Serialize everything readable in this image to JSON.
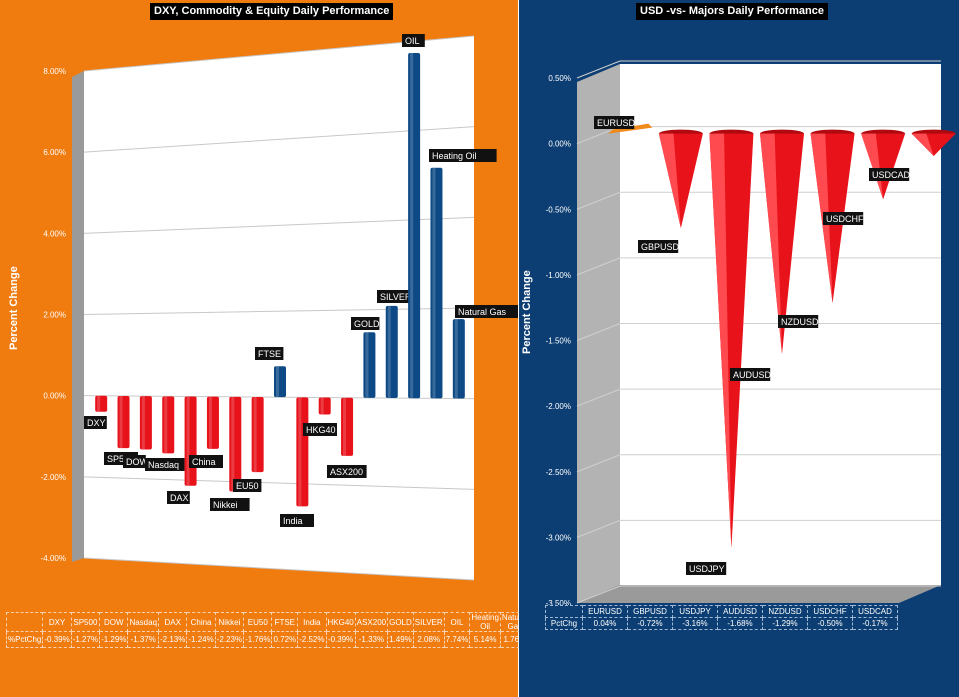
{
  "left": {
    "title": "DXY, Commodity & Equity Daily Performance",
    "ylabel": "Percent Change",
    "row_label": "%PctChg"
  },
  "right": {
    "title": "USD -vs- Majors Daily Performance",
    "ylabel": "Percent Change",
    "row_label": "PctChg"
  },
  "colors": {
    "negative": "#e8121a",
    "positive": "#0d4a85",
    "orange_bg": "#f07b0f",
    "navy_bg": "#0c3e73"
  },
  "chart_data": [
    {
      "type": "bar",
      "title": "DXY, Commodity & Equity Daily Performance",
      "ylabel": "Percent Change",
      "categories": [
        "DXY",
        "SP500",
        "DOW",
        "Nasdaq",
        "DAX",
        "China",
        "Nikkei",
        "EU50",
        "FTSE",
        "India",
        "HKG40",
        "ASX200",
        "GOLD",
        "SILVER",
        "OIL",
        "Heating Oil",
        "Natural Gas"
      ],
      "values": [
        -0.39,
        -1.27,
        -1.29,
        -1.37,
        -2.13,
        -1.24,
        -2.23,
        -1.76,
        0.72,
        -2.52,
        -0.39,
        -1.33,
        1.49,
        2.08,
        7.74,
        5.14,
        1.76
      ],
      "value_labels": [
        "-0.39%",
        "-1.27%",
        "-1.29%",
        "-1.37%",
        "-2.13%",
        "-1.24%",
        "-2.23%",
        "-1.76%",
        "0.72%",
        "-2.52%",
        "-0.39%",
        "-1.33%",
        "1.49%",
        "2.08%",
        "7.74%",
        "5.14%",
        "1.76%"
      ],
      "bar_labels": [
        "DXY",
        "SP500",
        "DOW",
        "Nasdaq",
        "DAX",
        "China",
        "Nikkei",
        "EU50",
        "FTSE",
        "India",
        "HKG40",
        "ASX200",
        "GOLD",
        "SILVER",
        "OIL",
        "Heating Oil",
        "Natural Gas"
      ],
      "yticks": [
        "8.00%",
        "6.00%",
        "4.00%",
        "2.00%",
        "0.00%",
        "-2.00%",
        "-4.00%"
      ],
      "ylim": [
        -4,
        8
      ],
      "grid": true
    },
    {
      "type": "bar",
      "title": "USD -vs- Majors Daily Performance",
      "ylabel": "Percent Change",
      "categories": [
        "EURUSD",
        "GBPUSD",
        "USDJPY",
        "AUDUSD",
        "NZDUSD",
        "USDCHF",
        "USDCAD"
      ],
      "values": [
        0.04,
        -0.72,
        -3.16,
        -1.68,
        -1.29,
        -0.5,
        -0.17
      ],
      "value_labels": [
        "0.04%",
        "-0.72%",
        "-3.16%",
        "-1.68%",
        "-1.29%",
        "-0.50%",
        "-0.17%"
      ],
      "bar_labels": [
        "EURUSD",
        "GBPUSD",
        "USDJPY",
        "AUDUSD",
        "NZDUSD",
        "USDCHF",
        "USDCAD"
      ],
      "yticks": [
        "0.50%",
        "0.00%",
        "-0.50%",
        "-1.00%",
        "-1.50%",
        "-2.00%",
        "-2.50%",
        "-3.00%",
        "-3.50%"
      ],
      "ylim": [
        -3.5,
        0.5
      ],
      "grid": true
    }
  ]
}
